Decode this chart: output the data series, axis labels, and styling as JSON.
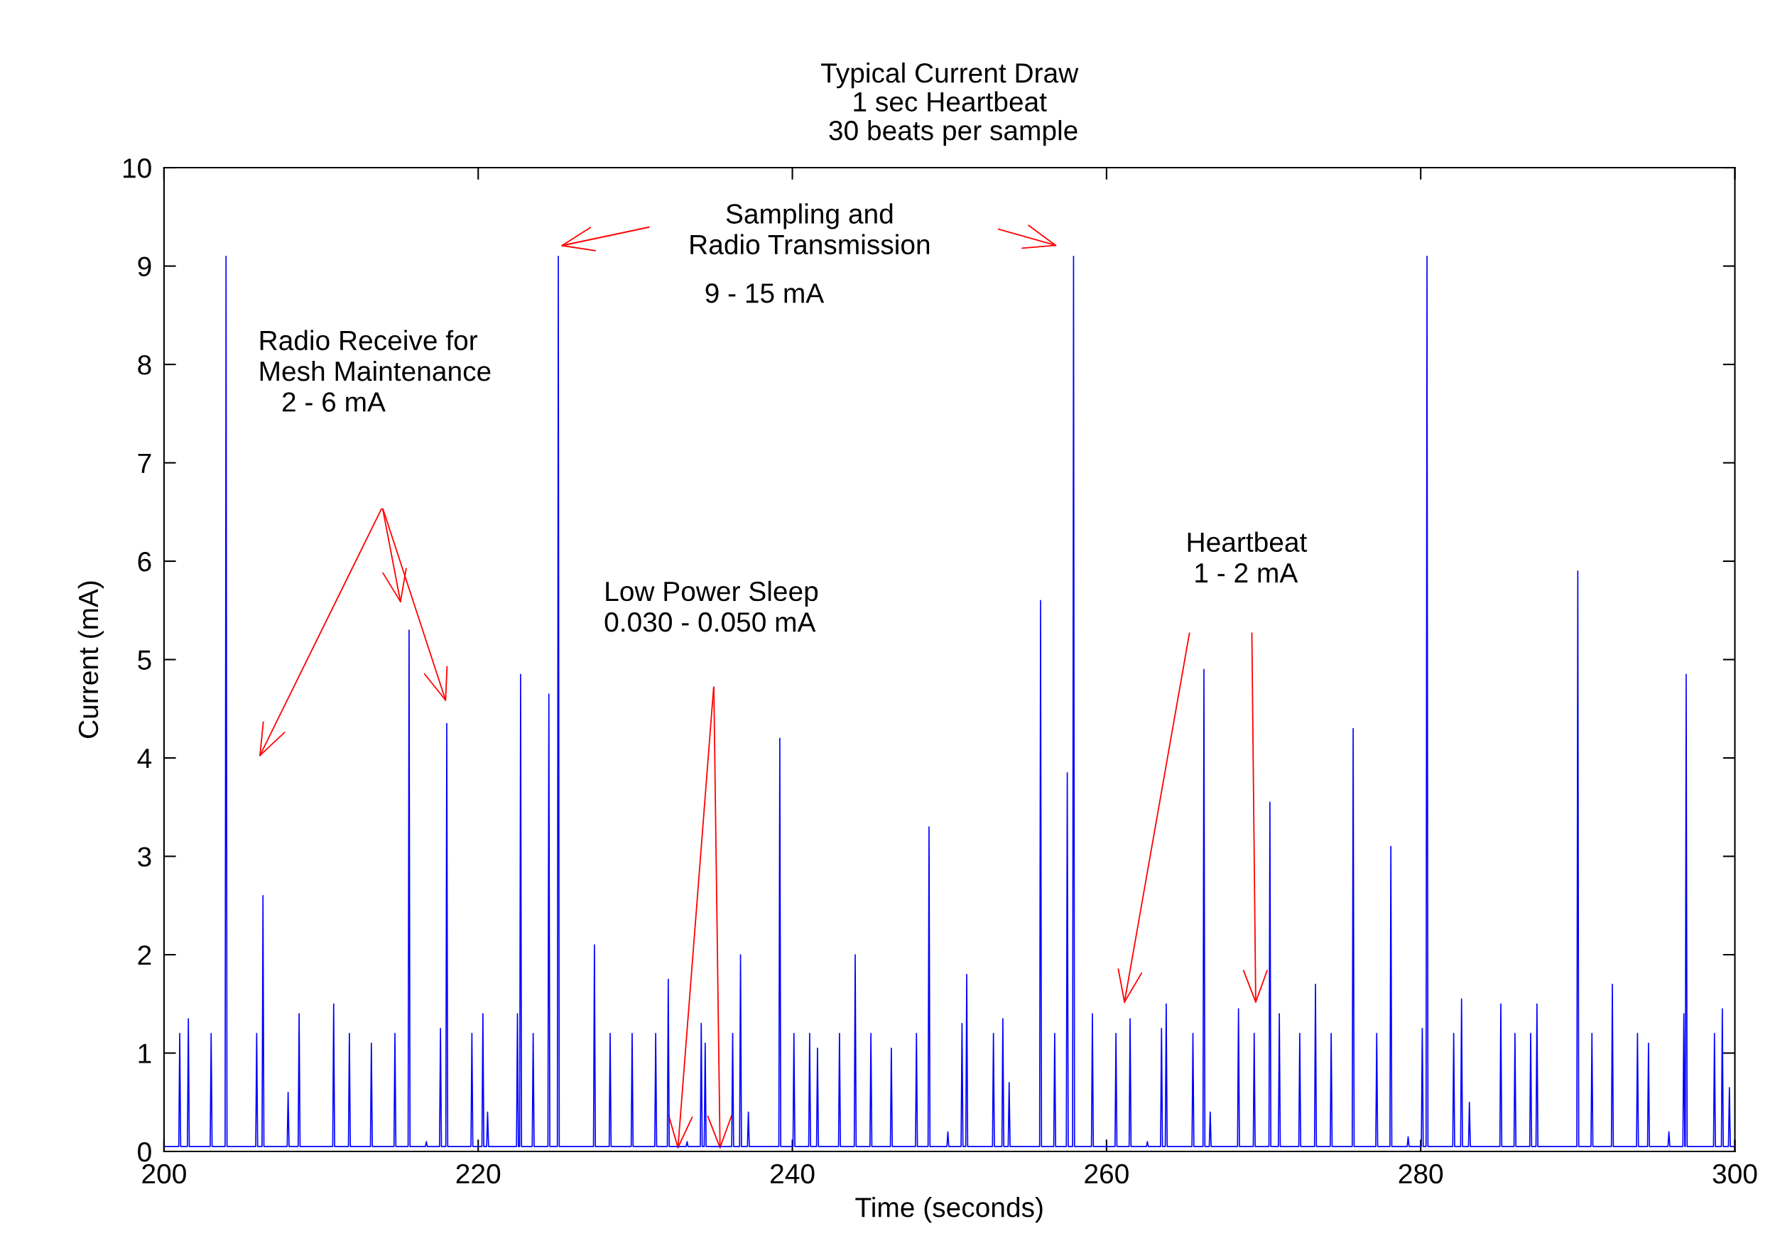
{
  "chart_data": {
    "type": "line",
    "title": "Typical Current Draw\n1 sec Heartbeat\n 30 beats per sample",
    "xlabel": "Time (seconds)",
    "ylabel": "Current (mA)",
    "xlim": [
      200,
      300
    ],
    "xticks": [
      200,
      220,
      240,
      260,
      280,
      300
    ],
    "ylim": [
      0,
      10
    ],
    "yticks": [
      0,
      1,
      2,
      3,
      4,
      5,
      6,
      7,
      8,
      9,
      10
    ],
    "grid": false,
    "legend": false,
    "annotations": [
      "Sampling and\nRadio Transmission",
      "9 - 15 mA",
      "Radio Receive for\nMesh Maintenance\n   2 - 6 mA",
      "Low Power Sleep\n0.030 - 0.050 mA",
      "Heartbeat\n 1 - 2 mA"
    ],
    "series": [
      {
        "color": "#0000ff",
        "x": [
          200,
          200.94,
          201.0,
          201.06,
          201.49,
          201.55,
          201.61,
          202.94,
          203.0,
          203.06,
          203.89,
          203.95,
          204.01,
          205.84,
          205.9,
          205.96,
          206.24,
          206.3,
          206.36,
          207.84,
          207.9,
          207.96,
          208.54,
          208.6,
          208.66,
          210.74,
          210.8,
          210.86,
          211.74,
          211.8,
          211.86,
          213.14,
          213.2,
          213.26,
          214.64,
          214.7,
          214.76,
          215.54,
          215.6,
          215.66,
          216.64,
          216.7,
          216.76,
          217.54,
          217.6,
          217.66,
          217.94,
          218.0,
          218.06,
          219.54,
          219.6,
          219.66,
          220.24,
          220.3,
          220.36,
          220.54,
          220.6,
          220.66,
          222.44,
          222.5,
          222.56,
          222.64,
          222.7,
          222.76,
          223.44,
          223.5,
          223.56,
          224.44,
          224.5,
          224.56,
          225.04,
          225.1,
          225.16,
          227.34,
          227.4,
          227.46,
          228.34,
          228.4,
          228.46,
          229.74,
          229.8,
          229.86,
          231.24,
          231.3,
          231.36,
          232.04,
          232.1,
          232.16,
          233.24,
          233.3,
          233.36,
          234.14,
          234.2,
          234.26,
          234.39,
          234.45,
          234.51,
          236.14,
          236.2,
          236.26,
          236.64,
          236.7,
          236.76,
          237.14,
          237.2,
          237.26,
          239.14,
          239.2,
          239.26,
          240.04,
          240.1,
          240.16,
          241.04,
          241.1,
          241.16,
          241.54,
          241.6,
          241.66,
          242.94,
          243.0,
          243.06,
          243.94,
          244.0,
          244.06,
          244.94,
          245.0,
          245.06,
          246.24,
          246.3,
          246.36,
          247.84,
          247.9,
          247.96,
          248.64,
          248.7,
          248.76,
          249.84,
          249.9,
          249.96,
          250.74,
          250.8,
          250.86,
          251.04,
          251.1,
          251.16,
          252.74,
          252.8,
          252.86,
          253.34,
          253.4,
          253.46,
          253.74,
          253.8,
          253.86,
          255.74,
          255.8,
          255.86,
          256.64,
          256.7,
          256.76,
          257.44,
          257.5,
          257.56,
          257.84,
          257.9,
          257.96,
          259.04,
          259.1,
          259.16,
          260.54,
          260.6,
          260.66,
          261.44,
          261.5,
          261.56,
          262.54,
          262.6,
          262.66,
          263.44,
          263.5,
          263.56,
          263.74,
          263.8,
          263.86,
          265.44,
          265.5,
          265.56,
          266.14,
          266.2,
          266.26,
          266.54,
          266.6,
          266.66,
          268.34,
          268.4,
          268.46,
          269.34,
          269.4,
          269.46,
          270.34,
          270.4,
          270.46,
          270.94,
          271.0,
          271.06,
          272.24,
          272.3,
          272.36,
          273.24,
          273.3,
          273.36,
          274.24,
          274.3,
          274.36,
          275.64,
          275.7,
          275.76,
          277.14,
          277.2,
          277.26,
          278.04,
          278.1,
          278.16,
          279.14,
          279.2,
          279.26,
          280.04,
          280.1,
          280.16,
          280.34,
          280.4,
          280.46,
          282.04,
          282.1,
          282.16,
          282.54,
          282.6,
          282.66,
          283.04,
          283.1,
          283.16,
          285.04,
          285.1,
          285.16,
          285.94,
          286.0,
          286.06,
          286.94,
          287.0,
          287.06,
          287.34,
          287.4,
          287.46,
          289.94,
          290.0,
          290.06,
          290.84,
          290.9,
          290.96,
          292.14,
          292.2,
          292.26,
          293.74,
          293.8,
          293.86,
          294.44,
          294.5,
          294.56,
          295.74,
          295.8,
          295.86,
          296.69,
          296.75,
          296.81,
          296.84,
          296.9,
          296.96,
          298.64,
          298.7,
          298.76,
          299.14,
          299.2,
          299.26,
          299.59,
          299.65,
          299.71,
          300
        ],
        "values": [
          0.05,
          0.05,
          1.2,
          0.05,
          0.05,
          1.35,
          0.05,
          0.05,
          1.2,
          0.05,
          0.05,
          9.1,
          0.05,
          0.05,
          1.2,
          0.05,
          0.05,
          2.6,
          0.05,
          0.05,
          0.6,
          0.05,
          0.05,
          1.4,
          0.05,
          0.05,
          1.5,
          0.05,
          0.05,
          1.2,
          0.05,
          0.05,
          1.1,
          0.05,
          0.05,
          1.2,
          0.05,
          0.05,
          5.3,
          0.05,
          0.05,
          0.1,
          0.05,
          0.05,
          1.25,
          0.05,
          0.05,
          4.35,
          0.05,
          0.05,
          1.2,
          0.05,
          0.05,
          1.4,
          0.05,
          0.05,
          0.4,
          0.05,
          0.05,
          1.4,
          0.05,
          0.05,
          4.85,
          0.05,
          0.05,
          1.2,
          0.05,
          0.05,
          4.65,
          0.05,
          0.05,
          9.1,
          0.05,
          0.05,
          2.1,
          0.05,
          0.05,
          1.2,
          0.05,
          0.05,
          1.2,
          0.05,
          0.05,
          1.2,
          0.05,
          0.05,
          1.75,
          0.05,
          0.05,
          0.1,
          0.05,
          0.05,
          1.3,
          0.05,
          0.05,
          1.1,
          0.05,
          0.05,
          1.2,
          0.05,
          0.05,
          2.0,
          0.05,
          0.05,
          0.4,
          0.05,
          0.05,
          4.2,
          0.05,
          0.05,
          1.2,
          0.05,
          0.05,
          1.2,
          0.05,
          0.05,
          1.05,
          0.05,
          0.05,
          1.2,
          0.05,
          0.05,
          2.0,
          0.05,
          0.05,
          1.2,
          0.05,
          0.05,
          1.05,
          0.05,
          0.05,
          1.2,
          0.05,
          0.05,
          3.3,
          0.05,
          0.05,
          0.2,
          0.05,
          0.05,
          1.3,
          0.05,
          0.05,
          1.8,
          0.05,
          0.05,
          1.2,
          0.05,
          0.05,
          1.35,
          0.05,
          0.05,
          0.7,
          0.05,
          0.05,
          5.6,
          0.05,
          0.05,
          1.2,
          0.05,
          0.05,
          3.85,
          0.05,
          0.05,
          9.1,
          0.05,
          0.05,
          1.4,
          0.05,
          0.05,
          1.2,
          0.05,
          0.05,
          1.35,
          0.05,
          0.05,
          0.1,
          0.05,
          0.05,
          1.25,
          0.05,
          0.05,
          1.5,
          0.05,
          0.05,
          1.2,
          0.05,
          0.05,
          4.9,
          0.05,
          0.05,
          0.4,
          0.05,
          0.05,
          1.45,
          0.05,
          0.05,
          1.2,
          0.05,
          0.05,
          3.55,
          0.05,
          0.05,
          1.4,
          0.05,
          0.05,
          1.2,
          0.05,
          0.05,
          1.7,
          0.05,
          0.05,
          1.2,
          0.05,
          0.05,
          4.3,
          0.05,
          0.05,
          1.2,
          0.05,
          0.05,
          3.1,
          0.05,
          0.05,
          0.15,
          0.05,
          0.05,
          1.25,
          0.05,
          0.05,
          9.1,
          0.05,
          0.05,
          1.2,
          0.05,
          0.05,
          1.55,
          0.05,
          0.05,
          0.5,
          0.05,
          0.05,
          1.5,
          0.05,
          0.05,
          1.2,
          0.05,
          0.05,
          1.2,
          0.05,
          0.05,
          1.5,
          0.05,
          0.05,
          5.9,
          0.05,
          0.05,
          1.2,
          0.05,
          0.05,
          1.7,
          0.05,
          0.05,
          1.2,
          0.05,
          0.05,
          1.1,
          0.05,
          0.05,
          0.2,
          0.05,
          0.05,
          1.4,
          0.05,
          0.05,
          4.85,
          0.05,
          0.05,
          1.2,
          0.05,
          0.05,
          1.45,
          0.05,
          0.05,
          0.65,
          0.05,
          0.05
        ]
      }
    ]
  }
}
